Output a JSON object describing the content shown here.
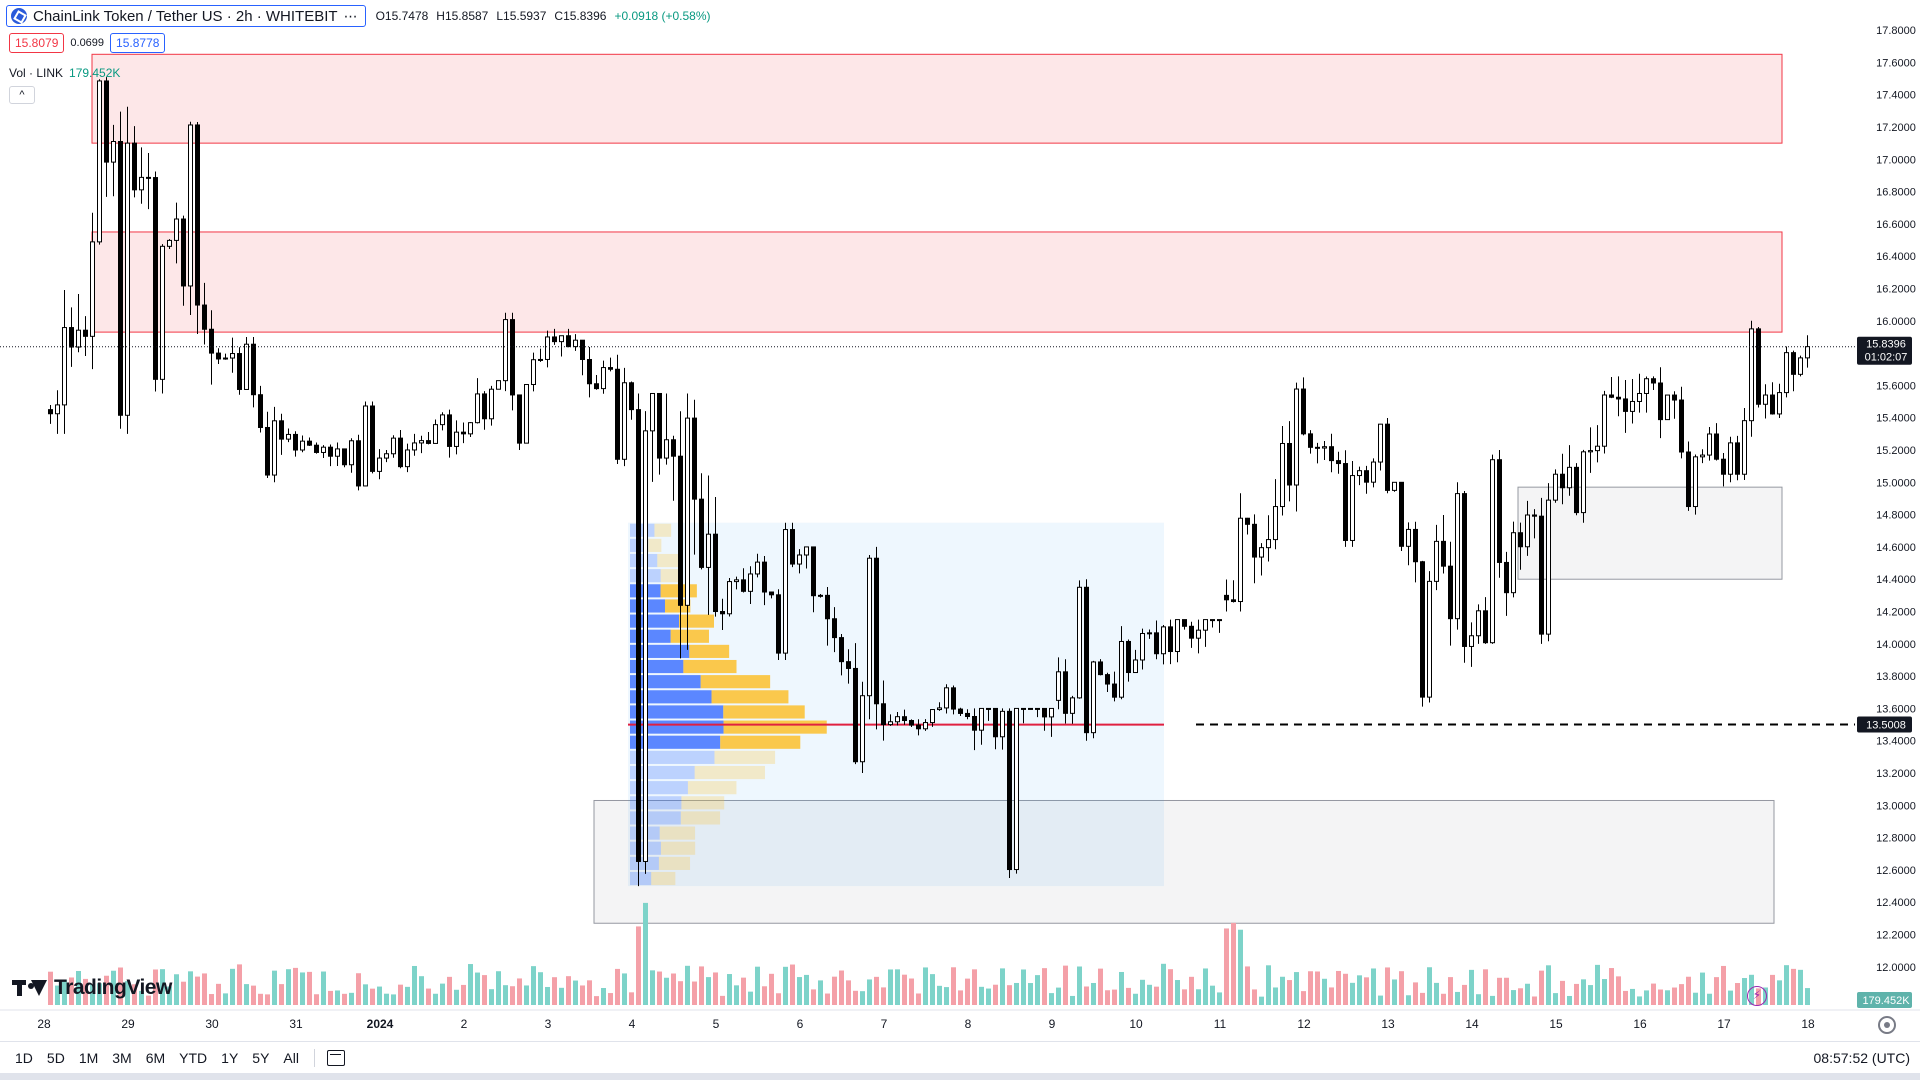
{
  "header": {
    "symbol": "ChainLink Token / Tether US · 2h · WHITEBIT",
    "more_icon": "three-dots-icon",
    "open": "O15.7478",
    "high": "H15.8587",
    "low": "L15.5937",
    "close": "C15.8396",
    "change": "+0.0918 (+0.58%)"
  },
  "trade": {
    "sell_price": "15.8079",
    "spread": "0.0699",
    "buy_price": "15.8778"
  },
  "volume_legend": {
    "label": "Vol · LINK",
    "value": "179.452K",
    "collapse_icon": "chevron-up-icon"
  },
  "price_axis": {
    "labels": [
      "17.8000",
      "17.6000",
      "17.4000",
      "17.2000",
      "17.0000",
      "16.8000",
      "16.6000",
      "16.4000",
      "16.2000",
      "16.0000",
      "15.6000",
      "15.4000",
      "15.2000",
      "15.0000",
      "14.8000",
      "14.6000",
      "14.4000",
      "14.2000",
      "14.0000",
      "13.8000",
      "13.6000",
      "13.4000",
      "13.2000",
      "13.0000",
      "12.8000",
      "12.6000",
      "12.4000",
      "12.2000",
      "12.0000"
    ],
    "last_price_label": "15.8396",
    "countdown_label": "01:02:07",
    "hline_label": "13.5008",
    "volume_label": "179.452K"
  },
  "time_axis": {
    "labels": [
      "28",
      "29",
      "30",
      "31",
      "2024",
      "2",
      "3",
      "4",
      "5",
      "6",
      "7",
      "8",
      "9",
      "10",
      "11",
      "12",
      "13",
      "14",
      "15",
      "16",
      "17",
      "18"
    ]
  },
  "ranges": [
    "1D",
    "5D",
    "1M",
    "3M",
    "6M",
    "YTD",
    "1Y",
    "5Y",
    "All"
  ],
  "clock": "08:57:52 (UTC)",
  "branding": "TradingView",
  "colors": {
    "up": "#ffffff",
    "down": "#000000",
    "vol_up": "#7dd3c9",
    "vol_down": "#f4a0a8",
    "resistance_zone": "#f23645",
    "support_zone": "#9598a1",
    "hline": "#000000",
    "poc_line": "#e02040"
  },
  "chart_data": {
    "type": "candlestick",
    "timeframe": "2h",
    "y_range": [
      11.9,
      17.85
    ],
    "days": [
      "28",
      "29",
      "30",
      "31",
      "2024",
      "2",
      "3",
      "4",
      "5",
      "6",
      "7",
      "8",
      "9",
      "10",
      "11",
      "12",
      "13",
      "14",
      "15",
      "16",
      "17"
    ],
    "daily_ohlc_approx": [
      {
        "day": "28",
        "open": 15.45,
        "high": 17.6,
        "low": 15.3,
        "close": 17.1
      },
      {
        "day": "29",
        "open": 17.1,
        "high": 17.3,
        "low": 15.55,
        "close": 15.8
      },
      {
        "day": "30",
        "open": 15.8,
        "high": 15.9,
        "low": 15.0,
        "close": 15.2
      },
      {
        "day": "31",
        "open": 15.2,
        "high": 15.5,
        "low": 14.95,
        "close": 15.15
      },
      {
        "day": "2024",
        "open": 15.15,
        "high": 15.45,
        "low": 14.8,
        "close": 15.3
      },
      {
        "day": "2",
        "open": 15.3,
        "high": 16.05,
        "low": 15.2,
        "close": 15.9
      },
      {
        "day": "3",
        "open": 15.9,
        "high": 15.95,
        "low": 15.1,
        "close": 15.45
      },
      {
        "day": "4",
        "open": 15.45,
        "high": 15.55,
        "low": 12.5,
        "close": 14.2
      },
      {
        "day": "5",
        "open": 14.2,
        "high": 14.75,
        "low": 13.9,
        "close": 14.55
      },
      {
        "day": "6",
        "open": 14.55,
        "high": 14.6,
        "low": 13.2,
        "close": 13.5
      },
      {
        "day": "7",
        "open": 13.5,
        "high": 13.75,
        "low": 13.3,
        "close": 13.55
      },
      {
        "day": "8",
        "open": 13.55,
        "high": 13.6,
        "low": 12.55,
        "close": 13.65
      },
      {
        "day": "9",
        "open": 13.65,
        "high": 14.4,
        "low": 13.4,
        "close": 13.9
      },
      {
        "day": "10",
        "open": 13.9,
        "high": 14.15,
        "low": 13.25,
        "close": 14.3
      },
      {
        "day": "11",
        "open": 14.3,
        "high": 15.65,
        "low": 14.2,
        "close": 15.3
      },
      {
        "day": "12",
        "open": 15.3,
        "high": 15.4,
        "low": 14.6,
        "close": 14.95
      },
      {
        "day": "13",
        "open": 14.95,
        "high": 15.0,
        "low": 13.6,
        "close": 14.05
      },
      {
        "day": "14",
        "open": 14.05,
        "high": 15.2,
        "low": 14.0,
        "close": 15.05
      },
      {
        "day": "15",
        "open": 15.05,
        "high": 16.0,
        "low": 14.75,
        "close": 15.55
      },
      {
        "day": "16",
        "open": 15.55,
        "high": 15.8,
        "low": 14.8,
        "close": 15.05
      },
      {
        "day": "17",
        "open": 15.05,
        "high": 16.0,
        "low": 15.0,
        "close": 15.84
      }
    ],
    "last_price": 15.8396,
    "horizontal_line": 13.5008,
    "zones": [
      {
        "kind": "resistance",
        "from": 17.1,
        "to": 17.65,
        "start_day": "28"
      },
      {
        "kind": "resistance",
        "from": 15.93,
        "to": 16.55,
        "start_day": "28"
      },
      {
        "kind": "support",
        "from": 14.4,
        "to": 14.97,
        "start_day": "14"
      },
      {
        "kind": "support",
        "from": 12.27,
        "to": 13.03,
        "start_day": "3"
      }
    ],
    "volume_profile": {
      "from_day": "3",
      "to_day": "10",
      "low": 12.5,
      "high": 14.75,
      "poc": 13.5
    }
  }
}
